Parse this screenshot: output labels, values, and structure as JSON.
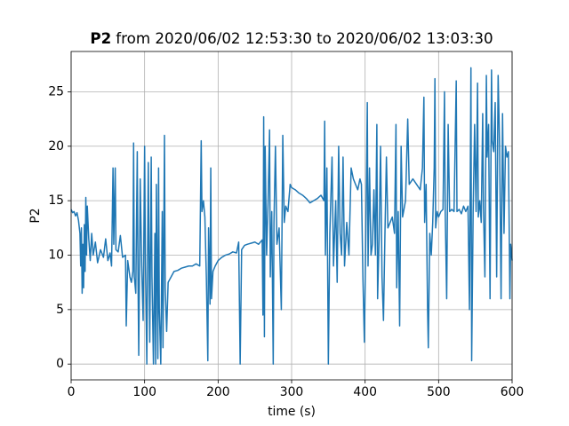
{
  "chart_data": {
    "type": "line",
    "title": "P2",
    "subtitle": "from 2020/06/02 12:53:30 to 2020/06/02 13:03:30",
    "x_label": "time (s)",
    "y_label": "P2",
    "color": "#1f77b4",
    "grid": true,
    "xlim": [
      0,
      600
    ],
    "xticks": [
      0,
      100,
      200,
      300,
      400,
      500,
      600
    ],
    "ylim": [
      -1.45,
      28.7
    ],
    "yticks": [
      0,
      5,
      10,
      15,
      20,
      25
    ],
    "x": [
      0,
      2,
      4,
      6,
      8,
      10,
      12,
      13,
      14,
      15,
      16,
      17,
      18,
      19,
      20,
      21,
      22,
      24,
      26,
      28,
      30,
      33,
      36,
      40,
      44,
      47,
      50,
      53,
      55,
      57,
      58,
      60,
      61,
      64,
      67,
      70,
      74,
      75,
      77,
      80,
      82,
      84,
      85,
      86,
      88,
      90,
      91,
      92,
      94,
      96,
      98,
      100,
      101,
      103,
      105,
      107,
      109,
      110,
      112,
      114,
      115,
      116,
      118,
      119,
      120,
      122,
      124,
      125,
      127,
      128,
      130,
      132,
      136,
      140,
      145,
      150,
      155,
      160,
      165,
      170,
      175,
      177,
      178,
      180,
      182,
      184,
      186,
      187,
      189,
      190,
      191,
      193,
      196,
      200,
      205,
      210,
      215,
      220,
      225,
      228,
      230,
      232,
      236,
      240,
      245,
      250,
      255,
      260,
      261,
      262,
      263,
      264,
      266,
      268,
      270,
      271,
      273,
      275,
      276,
      278,
      280,
      283,
      286,
      288,
      290,
      292,
      295,
      298,
      300,
      305,
      310,
      315,
      320,
      325,
      330,
      335,
      340,
      344,
      345,
      346,
      348,
      350,
      352,
      355,
      357,
      360,
      362,
      364,
      366,
      368,
      370,
      372,
      375,
      378,
      381,
      384,
      387,
      390,
      393,
      395,
      397,
      399,
      401,
      403,
      404,
      406,
      408,
      410,
      412,
      414,
      416,
      417,
      419,
      421,
      423,
      425,
      427,
      429,
      431,
      434,
      437,
      440,
      442,
      443,
      445,
      447,
      449,
      451,
      455,
      458,
      460,
      465,
      470,
      475,
      478,
      480,
      481,
      483,
      485,
      486,
      488,
      490,
      492,
      494,
      495,
      496,
      498,
      500,
      503,
      506,
      508,
      509,
      511,
      513,
      515,
      518,
      521,
      524,
      525,
      528,
      531,
      534,
      537,
      540,
      542,
      544,
      545,
      547,
      549,
      551,
      553,
      554,
      556,
      558,
      560,
      561,
      563,
      565,
      566,
      568,
      570,
      572,
      573,
      575,
      577,
      579,
      581,
      583,
      585,
      587,
      589,
      591,
      593,
      595,
      597,
      598,
      600
    ],
    "values": [
      14.2,
      13.9,
      14.0,
      13.6,
      13.9,
      13.2,
      12.0,
      9.0,
      12.5,
      6.5,
      11.0,
      7.0,
      12.8,
      8.5,
      15.3,
      10.0,
      14.5,
      11.5,
      9.5,
      12.0,
      10.0,
      11.2,
      9.3,
      10.5,
      9.8,
      11.5,
      9.5,
      10.2,
      9.0,
      18.0,
      11.0,
      18.0,
      10.5,
      10.3,
      11.8,
      9.8,
      10.0,
      3.5,
      9.5,
      8.0,
      7.5,
      8.5,
      20.3,
      8.0,
      6.5,
      19.5,
      8.0,
      0.8,
      17.0,
      9.0,
      4.0,
      20.0,
      10.0,
      0.0,
      18.5,
      2.0,
      19.0,
      8.0,
      0.0,
      12.0,
      0.0,
      16.5,
      0.5,
      18.0,
      5.0,
      0.0,
      14.0,
      1.5,
      21.0,
      7.0,
      3.0,
      7.5,
      8.0,
      8.5,
      8.6,
      8.8,
      8.9,
      9.0,
      9.0,
      9.2,
      9.0,
      20.5,
      14.0,
      15.0,
      13.5,
      8.0,
      0.3,
      12.5,
      5.5,
      18.0,
      6.0,
      8.5,
      9.0,
      9.5,
      9.8,
      10.0,
      10.1,
      10.3,
      10.2,
      11.2,
      0.0,
      10.5,
      10.9,
      11.0,
      11.1,
      11.2,
      11.0,
      11.4,
      4.5,
      22.7,
      2.5,
      20.0,
      10.0,
      15.0,
      21.5,
      8.0,
      14.0,
      0.0,
      13.0,
      20.0,
      11.0,
      12.5,
      5.0,
      21.0,
      13.0,
      14.5,
      14.0,
      16.5,
      16.2,
      16.0,
      15.7,
      15.5,
      15.2,
      14.8,
      15.0,
      15.2,
      15.5,
      15.0,
      22.3,
      10.0,
      18.0,
      0.0,
      12.0,
      19.0,
      9.0,
      15.0,
      7.5,
      20.0,
      12.0,
      10.0,
      19.0,
      9.0,
      13.0,
      10.0,
      18.0,
      17.0,
      16.5,
      16.0,
      17.0,
      16.5,
      8.0,
      2.0,
      12.0,
      24.0,
      9.0,
      18.0,
      10.0,
      11.0,
      16.0,
      10.0,
      22.0,
      6.0,
      11.5,
      20.0,
      8.0,
      4.0,
      12.0,
      19.0,
      12.5,
      13.0,
      13.5,
      12.0,
      22.0,
      7.0,
      14.0,
      3.5,
      20.0,
      13.5,
      15.0,
      22.5,
      16.5,
      17.0,
      16.5,
      16.0,
      18.0,
      24.5,
      13.0,
      16.5,
      5.0,
      1.5,
      12.0,
      10.0,
      13.0,
      18.0,
      26.2,
      12.5,
      14.0,
      13.5,
      14.0,
      14.2,
      25.0,
      14.0,
      6.0,
      22.0,
      14.0,
      14.2,
      14.0,
      26.0,
      14.0,
      14.2,
      13.8,
      14.5,
      14.0,
      14.5,
      5.0,
      27.2,
      0.3,
      14.0,
      22.0,
      14.0,
      25.8,
      13.5,
      15.0,
      13.0,
      23.0,
      14.5,
      8.0,
      26.5,
      19.0,
      22.0,
      6.0,
      27.0,
      20.5,
      19.5,
      24.0,
      8.0,
      26.5,
      20.0,
      6.0,
      23.0,
      12.0,
      20.0,
      19.0,
      19.5,
      6.0,
      11.0,
      9.5
    ]
  }
}
